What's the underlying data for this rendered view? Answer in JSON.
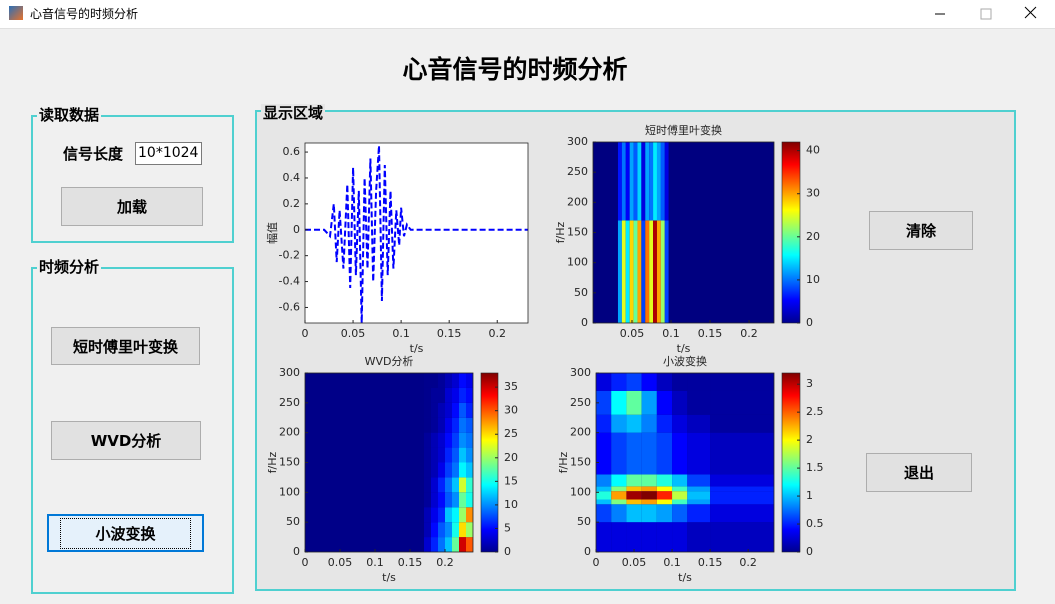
{
  "window": {
    "title": "心音信号的时频分析"
  },
  "header": {
    "title": "心音信号的时频分析"
  },
  "panels": {
    "read": {
      "title": "读取数据",
      "length_label": "信号长度",
      "length_value": "10*1024",
      "load_button": "加载"
    },
    "analysis": {
      "title": "时频分析",
      "buttons": [
        "短时傅里叶变换",
        "WVD分析",
        "小波变换"
      ]
    },
    "display": {
      "title": "显示区域",
      "clear_button": "清除",
      "exit_button": "退出"
    }
  },
  "chart_data": [
    {
      "type": "line",
      "xlabel": "t/s",
      "ylabel": "幅值",
      "color": "#0000ff",
      "line_style": "dashed",
      "x": [
        0,
        0.02,
        0.026,
        0.03,
        0.033,
        0.036,
        0.04,
        0.044,
        0.047,
        0.05,
        0.053,
        0.056,
        0.059,
        0.062,
        0.065,
        0.068,
        0.071,
        0.074,
        0.077,
        0.08,
        0.083,
        0.086,
        0.089,
        0.092,
        0.095,
        0.098,
        0.1,
        0.103,
        0.106,
        0.11,
        0.232
      ],
      "values": [
        0,
        0,
        -0.05,
        0.2,
        -0.25,
        0.15,
        -0.3,
        0.35,
        -0.45,
        0.48,
        -0.35,
        0.3,
        -0.72,
        0.4,
        -0.3,
        0.55,
        -0.4,
        0.3,
        0.65,
        -0.55,
        0.5,
        -0.35,
        0.3,
        -0.3,
        0.15,
        -0.12,
        0.17,
        -0.05,
        0.04,
        0,
        0
      ],
      "xlim": [
        0,
        0.232
      ],
      "ylim": [
        -0.72,
        0.67
      ],
      "xticks": [
        0,
        0.05,
        0.1,
        0.15,
        0.2
      ],
      "yticks": [
        -0.6,
        -0.4,
        -0.2,
        0,
        0.2,
        0.4,
        0.6
      ]
    },
    {
      "type": "heatmap",
      "title": "短时傅里叶变换",
      "xlabel": "t/s",
      "ylabel": "f/Hz",
      "colormap": "jet",
      "x_edges": [
        0,
        0.032,
        0.037,
        0.042,
        0.047,
        0.052,
        0.057,
        0.062,
        0.067,
        0.072,
        0.077,
        0.082,
        0.087,
        0.092,
        0.097,
        0.232
      ],
      "y_edges": [
        0,
        170,
        300
      ],
      "z": [
        [
          0,
          12,
          25,
          15,
          28,
          20,
          30,
          8,
          32,
          25,
          40,
          30,
          22,
          8,
          0
        ],
        [
          0,
          6,
          10,
          5,
          12,
          9,
          14,
          4,
          12,
          10,
          15,
          12,
          9,
          4,
          0
        ]
      ],
      "xlim": [
        0,
        0.232
      ],
      "ylim": [
        0,
        300
      ],
      "xticks": [
        0.05,
        0.1,
        0.15,
        0.2
      ],
      "yticks": [
        0,
        50,
        100,
        150,
        200,
        250,
        300
      ],
      "zlim": [
        0,
        42
      ],
      "zticks": [
        0,
        10,
        20,
        30,
        40
      ]
    },
    {
      "type": "heatmap",
      "title": "WVD分析",
      "xlabel": "t/s",
      "ylabel": "f/Hz",
      "colormap": "jet",
      "x_edges": [
        0,
        0.17,
        0.18,
        0.19,
        0.2,
        0.21,
        0.22,
        0.23,
        0.24
      ],
      "y_edges": [
        0,
        25,
        50,
        75,
        100,
        125,
        150,
        175,
        200,
        225,
        250,
        275,
        300
      ],
      "z": [
        [
          0.3,
          3,
          6,
          9,
          12,
          18,
          35,
          30
        ],
        [
          0.3,
          2,
          5,
          8,
          10,
          15,
          25,
          20
        ],
        [
          0.3,
          2,
          4,
          6,
          12,
          14,
          20,
          28
        ],
        [
          0.3,
          1,
          3,
          5,
          8,
          10,
          18,
          15
        ],
        [
          0.3,
          1,
          3,
          6,
          9,
          12,
          22,
          16
        ],
        [
          0.3,
          1,
          2,
          4,
          7,
          9,
          14,
          12
        ],
        [
          0.3,
          1,
          2,
          3,
          6,
          8,
          12,
          10
        ],
        [
          0.3,
          1,
          2,
          3,
          5,
          7,
          10,
          9
        ],
        [
          0.3,
          0.5,
          1,
          2,
          4,
          6,
          9,
          8
        ],
        [
          0.3,
          0.5,
          1,
          2,
          3,
          5,
          8,
          6
        ],
        [
          0.3,
          0.5,
          1,
          1,
          3,
          4,
          6,
          5
        ],
        [
          0.3,
          0.5,
          0.5,
          1,
          2,
          3,
          5,
          4
        ]
      ],
      "xlim": [
        0,
        0.24
      ],
      "ylim": [
        0,
        300
      ],
      "xticks": [
        0,
        0.05,
        0.1,
        0.15,
        0.2
      ],
      "yticks": [
        0,
        50,
        100,
        150,
        200,
        250,
        300
      ],
      "zlim": [
        0,
        38
      ],
      "zticks": [
        0,
        5,
        10,
        15,
        20,
        25,
        30,
        35
      ]
    },
    {
      "type": "heatmap",
      "title": "小波变换",
      "xlabel": "t/s",
      "ylabel": "f/Hz",
      "colormap": "jet",
      "x_edges": [
        0,
        0.02,
        0.04,
        0.06,
        0.08,
        0.1,
        0.12,
        0.15,
        0.234
      ],
      "y_edges": [
        0,
        50,
        80,
        88,
        102,
        110,
        130,
        200,
        230,
        270,
        300
      ],
      "z": [
        [
          0.3,
          0.3,
          0.3,
          0.3,
          0.3,
          0.3,
          0.2,
          0.2
        ],
        [
          0.6,
          0.8,
          1.0,
          1.0,
          0.9,
          0.7,
          0.5,
          0.3
        ],
        [
          1.0,
          1.6,
          2.2,
          2.3,
          2.0,
          1.4,
          0.9,
          0.5
        ],
        [
          1.3,
          2.3,
          3.1,
          3.2,
          2.7,
          1.8,
          1.0,
          0.5
        ],
        [
          1.0,
          1.6,
          2.2,
          2.3,
          2.0,
          1.4,
          0.9,
          0.5
        ],
        [
          0.8,
          1.2,
          1.5,
          1.5,
          1.3,
          1.0,
          0.6,
          0.3
        ],
        [
          0.4,
          0.6,
          0.7,
          0.7,
          0.6,
          0.4,
          0.3,
          0.2
        ],
        [
          0.5,
          0.9,
          1.0,
          0.8,
          0.5,
          0.3,
          0.2,
          0.1
        ],
        [
          0.6,
          1.2,
          1.5,
          0.9,
          0.4,
          0.2,
          0.1,
          0.1
        ],
        [
          0.3,
          0.5,
          0.6,
          0.4,
          0.2,
          0.1,
          0.1,
          0.1
        ]
      ],
      "xlim": [
        0,
        0.234
      ],
      "ylim": [
        0,
        300
      ],
      "xticks": [
        0,
        0.05,
        0.1,
        0.15,
        0.2
      ],
      "yticks": [
        0,
        50,
        100,
        150,
        200,
        250,
        300
      ],
      "zlim": [
        0,
        3.2
      ],
      "zticks": [
        0,
        0.5,
        1,
        1.5,
        2,
        2.5,
        3
      ]
    }
  ]
}
